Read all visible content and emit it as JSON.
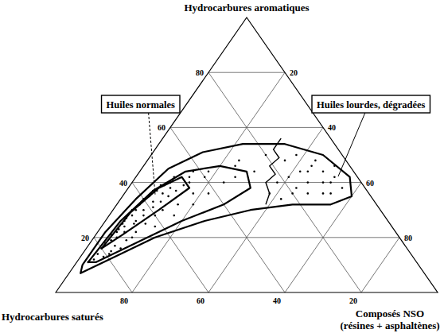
{
  "chart_data": {
    "type": "ternary",
    "a_label": "Hydrocarbures aromatiques",
    "s_label": "Hydrocarbures saturés",
    "n_label": "Composés NSO",
    "n_sublabel": "(résines + asphaltènes)",
    "range": [
      0,
      100
    ],
    "saturates_ticks": [
      20,
      40,
      60,
      80
    ],
    "aromatics_ticks": [
      20,
      40,
      60,
      80
    ],
    "nso_ticks": [
      20,
      40,
      60,
      80
    ],
    "grid": true,
    "color": "#000000",
    "annotations": [
      "Huiles normales",
      "Huiles lourdes, dégradées"
    ],
    "points": [
      [
        82,
        14,
        4
      ],
      [
        80,
        16,
        4
      ],
      [
        78,
        18,
        4
      ],
      [
        76,
        19,
        5
      ],
      [
        75,
        21,
        4
      ],
      [
        73,
        22,
        5
      ],
      [
        72,
        23,
        5
      ],
      [
        70,
        25,
        5
      ],
      [
        69,
        26,
        5
      ],
      [
        68,
        27,
        5
      ],
      [
        66,
        28,
        6
      ],
      [
        65,
        30,
        5
      ],
      [
        64,
        30,
        6
      ],
      [
        62,
        32,
        6
      ],
      [
        61,
        33,
        6
      ],
      [
        60,
        34,
        6
      ],
      [
        58,
        35,
        7
      ],
      [
        57,
        36,
        7
      ],
      [
        56,
        37,
        7
      ],
      [
        55,
        37,
        8
      ],
      [
        53,
        39,
        8
      ],
      [
        52,
        39,
        9
      ],
      [
        50,
        40,
        10
      ],
      [
        49,
        41,
        10
      ],
      [
        48,
        42,
        10
      ],
      [
        74,
        20,
        6
      ],
      [
        71,
        22,
        7
      ],
      [
        67,
        25,
        8
      ],
      [
        63,
        28,
        9
      ],
      [
        59,
        31,
        10
      ],
      [
        56,
        33,
        11
      ],
      [
        53,
        35,
        12
      ],
      [
        50,
        37,
        13
      ],
      [
        47,
        39,
        14
      ],
      [
        78,
        15,
        7
      ],
      [
        76,
        17,
        7
      ],
      [
        72,
        19,
        9
      ],
      [
        68,
        22,
        10
      ],
      [
        64,
        25,
        11
      ],
      [
        60,
        28,
        12
      ],
      [
        84,
        12,
        4
      ],
      [
        86,
        11,
        3
      ],
      [
        81,
        13,
        6
      ],
      [
        79,
        14,
        7
      ],
      [
        70,
        24,
        6
      ],
      [
        66,
        26,
        8
      ],
      [
        62,
        30,
        8
      ],
      [
        58,
        33,
        9
      ],
      [
        54,
        36,
        10
      ],
      [
        51,
        38,
        11
      ],
      [
        44,
        42,
        14
      ],
      [
        42,
        44,
        14
      ],
      [
        40,
        42,
        18
      ],
      [
        45,
        40,
        15
      ],
      [
        57,
        30,
        13
      ],
      [
        52,
        32,
        16
      ],
      [
        46,
        36,
        18
      ],
      [
        38,
        44,
        18
      ],
      [
        36,
        40,
        24
      ],
      [
        42,
        36,
        22
      ],
      [
        48,
        32,
        20
      ],
      [
        55,
        28,
        17
      ],
      [
        62,
        24,
        14
      ],
      [
        70,
        20,
        10
      ],
      [
        75,
        16,
        9
      ],
      [
        30,
        46,
        24
      ],
      [
        32,
        42,
        26
      ],
      [
        28,
        48,
        24
      ],
      [
        26,
        44,
        30
      ],
      [
        20,
        50,
        30
      ],
      [
        16,
        48,
        36
      ],
      [
        12,
        50,
        38
      ],
      [
        10,
        46,
        44
      ],
      [
        8,
        44,
        48
      ],
      [
        6,
        42,
        52
      ],
      [
        14,
        44,
        42
      ],
      [
        18,
        42,
        40
      ],
      [
        22,
        40,
        38
      ],
      [
        10,
        40,
        50
      ],
      [
        6,
        38,
        56
      ],
      [
        12,
        36,
        52
      ],
      [
        16,
        36,
        48
      ],
      [
        20,
        36,
        44
      ],
      [
        24,
        34,
        42
      ],
      [
        8,
        48,
        44
      ],
      [
        4,
        46,
        50
      ],
      [
        14,
        40,
        46
      ],
      [
        18,
        38,
        44
      ],
      [
        12,
        44,
        44
      ],
      [
        26,
        36,
        38
      ],
      [
        10,
        36,
        54
      ],
      [
        8,
        40,
        52
      ]
    ],
    "contours": [
      [
        [
          88,
          10,
          2
        ],
        [
          76,
          22,
          2
        ],
        [
          62,
          34,
          4
        ],
        [
          48,
          45,
          7
        ],
        [
          36,
          51,
          13
        ],
        [
          24,
          54,
          22
        ],
        [
          13,
          54,
          33
        ],
        [
          5,
          50,
          45
        ],
        [
          2,
          42,
          56
        ],
        [
          5,
          35,
          60
        ],
        [
          12,
          32,
          56
        ],
        [
          22,
          32,
          46
        ],
        [
          34,
          30,
          36
        ],
        [
          48,
          26,
          26
        ],
        [
          64,
          20,
          16
        ],
        [
          80,
          12,
          8
        ],
        [
          90,
          7,
          3
        ]
      ],
      [
        [
          86,
          11,
          3
        ],
        [
          70,
          26,
          4
        ],
        [
          56,
          37,
          7
        ],
        [
          44,
          44,
          12
        ],
        [
          34,
          46,
          20
        ],
        [
          28,
          44,
          28
        ],
        [
          30,
          38,
          32
        ],
        [
          40,
          32,
          28
        ],
        [
          54,
          26,
          20
        ],
        [
          70,
          18,
          12
        ],
        [
          84,
          11,
          5
        ]
      ],
      [
        [
          80,
          16,
          4
        ],
        [
          66,
          29,
          5
        ],
        [
          54,
          38,
          8
        ],
        [
          46,
          42,
          12
        ],
        [
          46,
          38,
          16
        ],
        [
          58,
          30,
          12
        ],
        [
          72,
          21,
          7
        ]
      ]
    ],
    "boundary": [
      [
        13,
        56,
        31
      ],
      [
        17,
        52,
        31
      ],
      [
        17,
        49,
        34
      ],
      [
        21,
        46,
        33
      ],
      [
        21,
        43,
        36
      ],
      [
        25,
        40,
        35
      ],
      [
        26,
        36,
        38
      ],
      [
        29,
        32,
        39
      ]
    ]
  }
}
